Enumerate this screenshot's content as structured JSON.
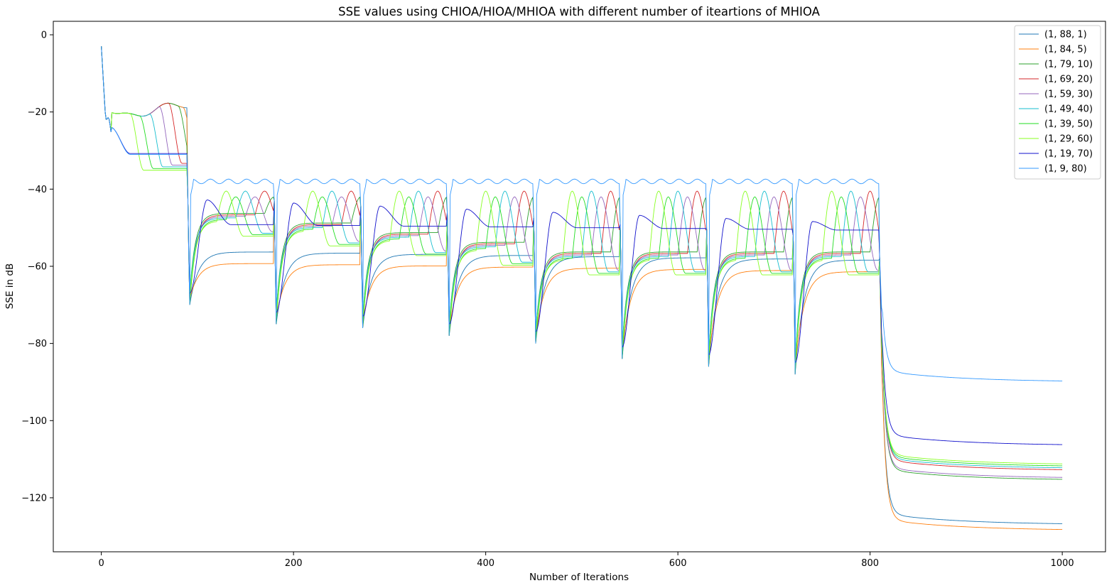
{
  "chart_data": {
    "type": "line",
    "title": "SSE values using CHIOA/HIOA/MHIOA with different number of iteartions of MHIOA",
    "xlabel": "Number of Iterations",
    "ylabel": "SSE in dB",
    "xlim": [
      -50,
      1045
    ],
    "ylim": [
      -134,
      3.5
    ],
    "xticks": [
      0,
      200,
      400,
      600,
      800,
      1000
    ],
    "yticks": [
      0,
      -20,
      -40,
      -60,
      -80,
      -100,
      -120
    ],
    "xtick_labels": [
      "0",
      "200",
      "400",
      "600",
      "800",
      "1000"
    ],
    "ytick_labels": [
      "0",
      "−20",
      "−40",
      "−60",
      "−80",
      "−100",
      "−120"
    ],
    "grid": false,
    "legend_position": "top-right",
    "series": [
      {
        "name": "(1, 88, 1)",
        "color": "#1f77b4",
        "params": [
          1,
          88,
          1
        ],
        "final_value": -127
      },
      {
        "name": "(1, 84, 5)",
        "color": "#ff7f0e",
        "params": [
          1,
          84,
          5
        ],
        "final_value": -128.5
      },
      {
        "name": "(1, 79, 10)",
        "color": "#2ca02c",
        "params": [
          1,
          79,
          10
        ],
        "final_value": -115.5
      },
      {
        "name": "(1, 69, 20)",
        "color": "#d62728",
        "params": [
          1,
          69,
          20
        ],
        "final_value": -113
      },
      {
        "name": "(1, 59, 30)",
        "color": "#9467bd",
        "params": [
          1,
          59,
          30
        ],
        "final_value": -115
      },
      {
        "name": "(1, 49, 40)",
        "color": "#17becf",
        "params": [
          1,
          49,
          40
        ],
        "final_value": -112.5
      },
      {
        "name": "(1, 39, 50)",
        "color": "#22dd22",
        "params": [
          1,
          39,
          50
        ],
        "final_value": -112
      },
      {
        "name": "(1, 29, 60)",
        "color": "#88ff22",
        "params": [
          1,
          29,
          60
        ],
        "final_value": -111.5
      },
      {
        "name": "(1, 19, 70)",
        "color": "#1111cc",
        "params": [
          1,
          19,
          70
        ],
        "final_value": -106.5
      },
      {
        "name": "(1, 9, 80)",
        "color": "#3399ff",
        "params": [
          1,
          9,
          80
        ],
        "final_value": -90
      }
    ]
  }
}
